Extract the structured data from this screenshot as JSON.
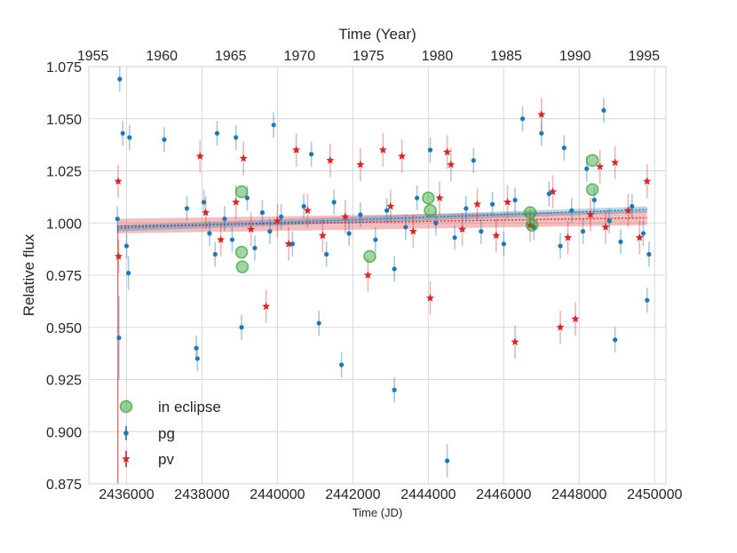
{
  "chart_data": {
    "type": "scatter",
    "xlabel": "Time (JD)",
    "ylabel": "Relative flux",
    "top_xlabel": "Time (Year)",
    "xlim": [
      2435000,
      2450300
    ],
    "ylim": [
      0.875,
      1.075
    ],
    "x_ticks": [
      2436000,
      2438000,
      2440000,
      2442000,
      2444000,
      2446000,
      2448000,
      2450000
    ],
    "x_tick_labels": [
      "2436000",
      "2438000",
      "2440000",
      "2442000",
      "2444000",
      "2446000",
      "2448000",
      "2450000"
    ],
    "y_ticks": [
      0.875,
      0.9,
      0.925,
      0.95,
      0.975,
      1.0,
      1.025,
      1.05,
      1.075
    ],
    "y_tick_labels": [
      "0.875",
      "0.900",
      "0.925",
      "0.950",
      "0.975",
      "1.000",
      "1.025",
      "1.050",
      "1.075"
    ],
    "year_ticks": [
      1955,
      1960,
      1965,
      1970,
      1975,
      1980,
      1985,
      1990,
      1995
    ],
    "year_tick_labels": [
      "1955",
      "1960",
      "1965",
      "1970",
      "1975",
      "1980",
      "1985",
      "1990",
      "1995"
    ],
    "year_ref": {
      "year": 1955,
      "jd": 2435108.5,
      "days_per_year": 365.25
    },
    "grid": true,
    "legend": {
      "position": "lower-left",
      "entries": [
        {
          "label": "in eclipse",
          "marker": "circle",
          "color": "#2ca02c"
        },
        {
          "label": "pg",
          "marker": "dot-errorbar",
          "color": "#1f77b4"
        },
        {
          "label": "pv",
          "marker": "star-errorbar",
          "color": "#d62728"
        }
      ]
    },
    "colors": {
      "pg": "#1f77b4",
      "pv": "#d62728",
      "eclipse": "#2ca02c"
    },
    "trend": {
      "pg": {
        "x": [
          2435750,
          2449800
        ],
        "y": [
          0.9975,
          1.0065
        ],
        "band": 0.0015
      },
      "pv": {
        "x": [
          2435750,
          2449800
        ],
        "y": [
          0.9985,
          1.0025
        ],
        "band": 0.0035
      }
    },
    "pv_low_errorbar": {
      "x": 2435770,
      "y_top": 0.997,
      "y_bottom": 0.875
    },
    "series": [
      {
        "name": "pg",
        "points": [
          [
            2435820,
            1.069,
            0.006
          ],
          [
            2435900,
            1.043,
            0.006
          ],
          [
            2436080,
            1.041,
            0.006
          ],
          [
            2435800,
            0.945,
            0.02
          ],
          [
            2436050,
            0.976,
            0.008
          ],
          [
            2435760,
            1.002,
            0.006
          ],
          [
            2436000,
            0.989,
            0.006
          ],
          [
            2437000,
            1.04,
            0.006
          ],
          [
            2437600,
            1.007,
            0.006
          ],
          [
            2437850,
            0.94,
            0.006
          ],
          [
            2437880,
            0.935,
            0.006
          ],
          [
            2438400,
            1.043,
            0.006
          ],
          [
            2438900,
            1.041,
            0.006
          ],
          [
            2439050,
            0.95,
            0.006
          ],
          [
            2439900,
            1.047,
            0.006
          ],
          [
            2440900,
            1.033,
            0.006
          ],
          [
            2441100,
            0.952,
            0.006
          ],
          [
            2441700,
            0.932,
            0.006
          ],
          [
            2443100,
            0.92,
            0.006
          ],
          [
            2443100,
            0.978,
            0.006
          ],
          [
            2444050,
            1.035,
            0.006
          ],
          [
            2444500,
            0.886,
            0.008
          ],
          [
            2445200,
            1.03,
            0.006
          ],
          [
            2446500,
            1.05,
            0.006
          ],
          [
            2447000,
            1.043,
            0.006
          ],
          [
            2447600,
            1.036,
            0.006
          ],
          [
            2448200,
            1.026,
            0.006
          ],
          [
            2448650,
            1.054,
            0.006
          ],
          [
            2448950,
            0.944,
            0.006
          ],
          [
            2449800,
            0.963,
            0.006
          ],
          [
            2449850,
            0.985,
            0.006
          ],
          [
            2438050,
            1.01,
            0.006
          ],
          [
            2438200,
            0.995,
            0.006
          ],
          [
            2438350,
            0.985,
            0.006
          ],
          [
            2438600,
            1.002,
            0.006
          ],
          [
            2438800,
            0.992,
            0.006
          ],
          [
            2439200,
            1.012,
            0.006
          ],
          [
            2439400,
            0.988,
            0.006
          ],
          [
            2439600,
            1.005,
            0.006
          ],
          [
            2439800,
            0.996,
            0.006
          ],
          [
            2440100,
            1.003,
            0.006
          ],
          [
            2440400,
            0.99,
            0.006
          ],
          [
            2440700,
            1.008,
            0.006
          ],
          [
            2441300,
            0.985,
            0.006
          ],
          [
            2441500,
            1.01,
            0.006
          ],
          [
            2441900,
            0.995,
            0.006
          ],
          [
            2442200,
            1.004,
            0.006
          ],
          [
            2442600,
            0.992,
            0.006
          ],
          [
            2442900,
            1.006,
            0.006
          ],
          [
            2443400,
            0.998,
            0.006
          ],
          [
            2443700,
            1.012,
            0.006
          ],
          [
            2444200,
            1.0,
            0.006
          ],
          [
            2444700,
            0.993,
            0.006
          ],
          [
            2445000,
            1.007,
            0.006
          ],
          [
            2445400,
            0.996,
            0.006
          ],
          [
            2445700,
            1.009,
            0.006
          ],
          [
            2446000,
            0.99,
            0.006
          ],
          [
            2446300,
            1.011,
            0.006
          ],
          [
            2446800,
            0.998,
            0.006
          ],
          [
            2447200,
            1.014,
            0.006
          ],
          [
            2447500,
            0.989,
            0.006
          ],
          [
            2447800,
            1.006,
            0.006
          ],
          [
            2448100,
            0.996,
            0.006
          ],
          [
            2448400,
            1.011,
            0.006
          ],
          [
            2448800,
            1.001,
            0.006
          ],
          [
            2449100,
            0.991,
            0.006
          ],
          [
            2449400,
            1.008,
            0.006
          ],
          [
            2449700,
            0.995,
            0.006
          ]
        ]
      },
      {
        "name": "pv",
        "points": [
          [
            2435780,
            1.02,
            0.008
          ],
          [
            2435790,
            0.984,
            0.008
          ],
          [
            2437950,
            1.032,
            0.008
          ],
          [
            2439100,
            1.031,
            0.008
          ],
          [
            2439700,
            0.96,
            0.008
          ],
          [
            2440500,
            1.035,
            0.008
          ],
          [
            2441400,
            1.03,
            0.008
          ],
          [
            2442200,
            1.028,
            0.008
          ],
          [
            2442800,
            1.035,
            0.008
          ],
          [
            2443300,
            1.032,
            0.008
          ],
          [
            2444050,
            0.964,
            0.008
          ],
          [
            2444500,
            1.034,
            0.008
          ],
          [
            2444600,
            1.028,
            0.008
          ],
          [
            2446300,
            0.943,
            0.008
          ],
          [
            2447000,
            1.052,
            0.008
          ],
          [
            2447500,
            0.95,
            0.008
          ],
          [
            2447900,
            0.954,
            0.008
          ],
          [
            2448550,
            1.027,
            0.008
          ],
          [
            2448950,
            1.029,
            0.008
          ],
          [
            2449800,
            1.02,
            0.008
          ],
          [
            2438100,
            1.005,
            0.008
          ],
          [
            2438500,
            0.992,
            0.008
          ],
          [
            2438900,
            1.01,
            0.008
          ],
          [
            2439300,
            0.997,
            0.008
          ],
          [
            2440000,
            1.001,
            0.008
          ],
          [
            2440300,
            0.99,
            0.008
          ],
          [
            2440800,
            1.006,
            0.008
          ],
          [
            2441200,
            0.994,
            0.008
          ],
          [
            2441800,
            1.003,
            0.008
          ],
          [
            2442400,
            0.975,
            0.008
          ],
          [
            2443000,
            1.008,
            0.008
          ],
          [
            2443600,
            0.996,
            0.008
          ],
          [
            2444300,
            1.012,
            0.008
          ],
          [
            2444900,
            0.997,
            0.008
          ],
          [
            2445300,
            1.009,
            0.008
          ],
          [
            2445800,
            0.994,
            0.008
          ],
          [
            2446100,
            1.01,
            0.008
          ],
          [
            2446700,
            0.999,
            0.008
          ],
          [
            2447300,
            1.015,
            0.008
          ],
          [
            2447700,
            0.993,
            0.008
          ],
          [
            2448300,
            1.004,
            0.008
          ],
          [
            2448700,
            0.998,
            0.008
          ],
          [
            2449300,
            1.006,
            0.008
          ],
          [
            2449600,
            0.993,
            0.008
          ]
        ]
      },
      {
        "name": "in eclipse",
        "points": [
          [
            2439050,
            1.015
          ],
          [
            2439050,
            0.986
          ],
          [
            2439070,
            0.979
          ],
          [
            2442450,
            0.984
          ],
          [
            2444000,
            1.012
          ],
          [
            2444050,
            1.006
          ],
          [
            2446700,
            1.005
          ],
          [
            2446750,
            0.999
          ],
          [
            2448350,
            1.03
          ],
          [
            2448350,
            1.016
          ]
        ]
      }
    ]
  }
}
